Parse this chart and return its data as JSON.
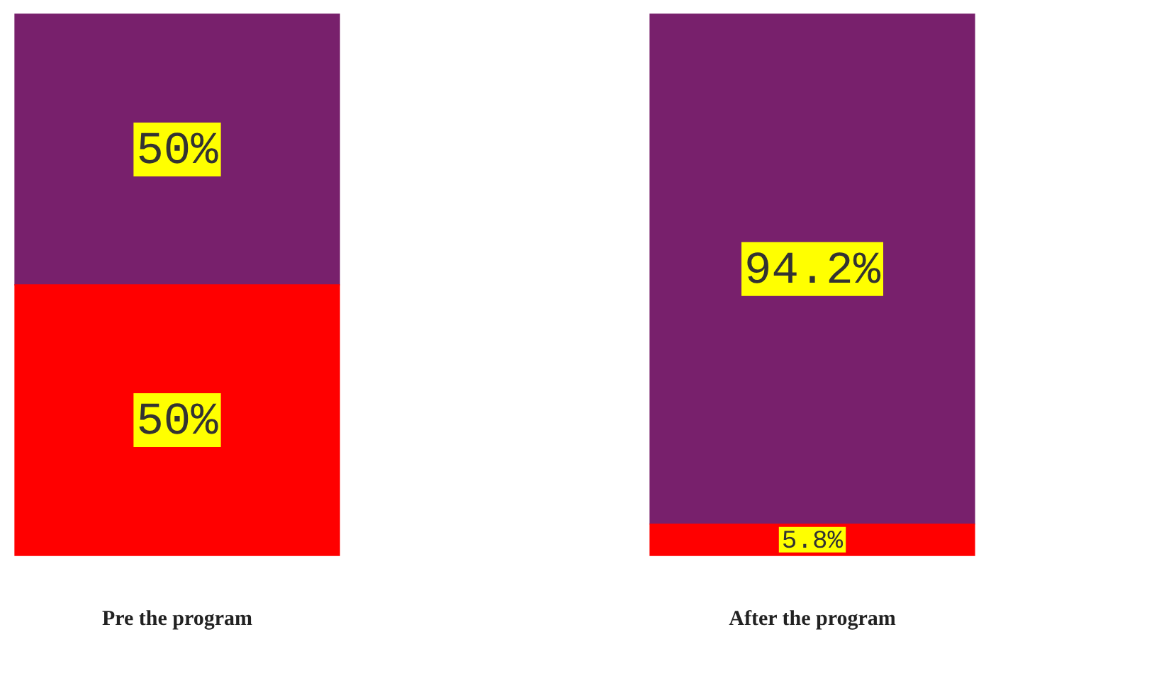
{
  "chart_data": {
    "type": "bar",
    "stacked": true,
    "categories": [
      "Pre the program",
      "After the program"
    ],
    "ylim": [
      0,
      100
    ],
    "tick_labels": "x",
    "grid": false,
    "legend": false,
    "series": [
      {
        "color": "#ff0000",
        "values": [
          50,
          5.8
        ],
        "value_labels": [
          "50%",
          "5.8%"
        ]
      },
      {
        "color": "#78206c",
        "values": [
          50,
          94.2
        ],
        "value_labels": [
          "50%",
          "94.2%"
        ]
      }
    ]
  }
}
